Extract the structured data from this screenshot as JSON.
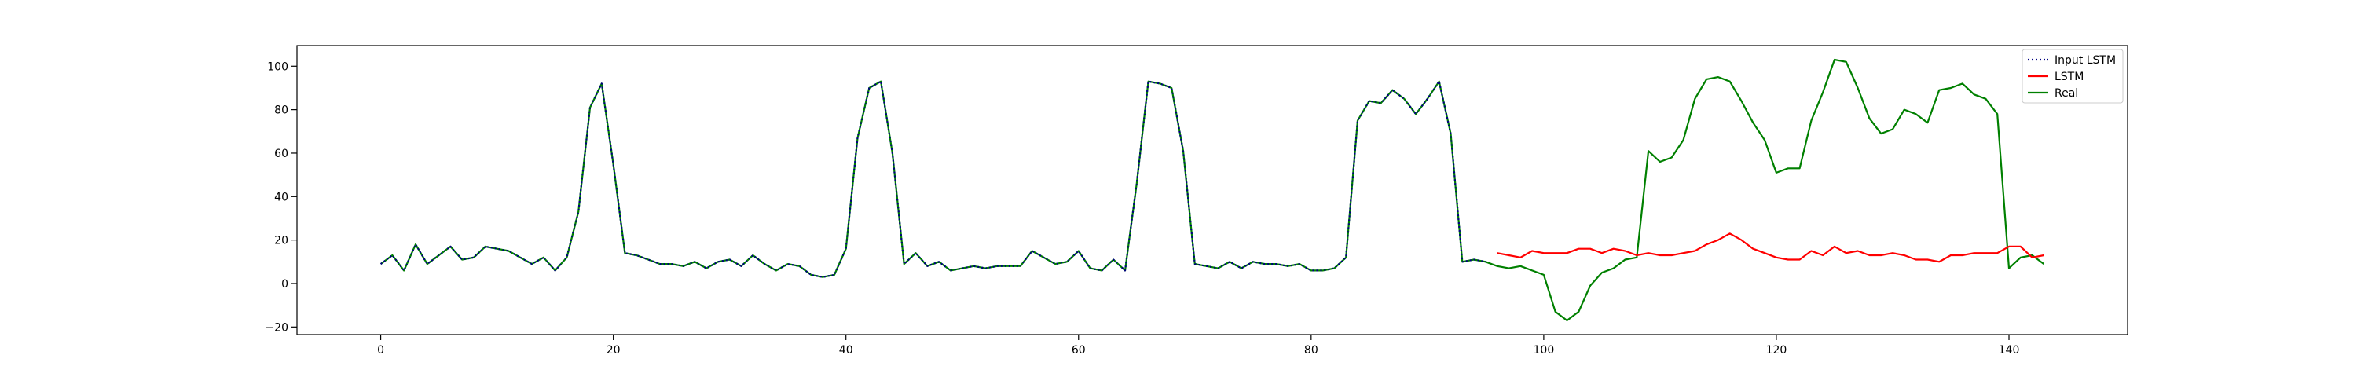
{
  "chart_data": {
    "type": "line",
    "title": "",
    "xlabel": "",
    "ylabel": "",
    "xlim": [
      -7.2,
      150.2
    ],
    "ylim": [
      -23.5,
      109.5
    ],
    "xticks": [
      0,
      20,
      40,
      60,
      80,
      100,
      120,
      140
    ],
    "yticks": [
      -20,
      0,
      20,
      40,
      60,
      80,
      100
    ],
    "grid": false,
    "legend_position": "top-right",
    "series": [
      {
        "name": "Input LSTM",
        "color": "#000080",
        "style": "dotted",
        "x": [
          0,
          1,
          2,
          3,
          4,
          5,
          6,
          7,
          8,
          9,
          10,
          11,
          12,
          13,
          14,
          15,
          16,
          17,
          18,
          19,
          20,
          21,
          22,
          23,
          24,
          25,
          26,
          27,
          28,
          29,
          30,
          31,
          32,
          33,
          34,
          35,
          36,
          37,
          38,
          39,
          40,
          41,
          42,
          43,
          44,
          45,
          46,
          47,
          48,
          49,
          50,
          51,
          52,
          53,
          54,
          55,
          56,
          57,
          58,
          59,
          60,
          61,
          62,
          63,
          64,
          65,
          66,
          67,
          68,
          69,
          70,
          71,
          72,
          73,
          74,
          75,
          76,
          77,
          78,
          79,
          80,
          81,
          82,
          83,
          84,
          85,
          86,
          87,
          88,
          89,
          90,
          91,
          92,
          93,
          94,
          95
        ],
        "values": [
          9,
          13,
          6,
          18,
          9,
          13,
          17,
          11,
          12,
          17,
          16,
          15,
          12,
          9,
          12,
          6,
          12,
          33,
          81,
          92,
          55,
          14,
          13,
          11,
          9,
          9,
          8,
          10,
          7,
          10,
          11,
          8,
          13,
          9,
          6,
          9,
          8,
          4,
          3,
          4,
          16,
          67,
          90,
          93,
          60,
          9,
          14,
          8,
          10,
          6,
          7,
          8,
          7,
          8,
          8,
          8,
          15,
          12,
          9,
          10,
          15,
          7,
          6,
          11,
          6,
          46,
          93,
          92,
          90,
          61,
          9,
          8,
          7,
          10,
          7,
          10,
          9,
          9,
          8,
          9,
          6,
          6,
          7,
          12,
          75,
          84,
          83,
          89,
          85,
          78,
          85,
          93,
          69,
          10,
          11,
          10
        ]
      },
      {
        "name": "LSTM",
        "color": "#ff0000",
        "style": "solid",
        "x": [
          96,
          97,
          98,
          99,
          100,
          101,
          102,
          103,
          104,
          105,
          106,
          107,
          108,
          109,
          110,
          111,
          112,
          113,
          114,
          115,
          116,
          117,
          118,
          119,
          120,
          121,
          122,
          123,
          124,
          125,
          126,
          127,
          128,
          129,
          130,
          131,
          132,
          133,
          134,
          135,
          136,
          137,
          138,
          139,
          140,
          141,
          142,
          143
        ],
        "values": [
          14,
          13,
          12,
          15,
          14,
          14,
          14,
          16,
          16,
          14,
          16,
          15,
          13,
          14,
          13,
          13,
          14,
          15,
          18,
          20,
          23,
          20,
          16,
          14,
          12,
          11,
          11,
          15,
          13,
          17,
          14,
          15,
          13,
          13,
          14,
          13,
          11,
          11,
          10,
          13,
          13,
          14,
          14,
          14,
          17,
          17,
          12,
          13
        ]
      },
      {
        "name": "Real",
        "color": "#008000",
        "style": "solid",
        "x": [
          0,
          1,
          2,
          3,
          4,
          5,
          6,
          7,
          8,
          9,
          10,
          11,
          12,
          13,
          14,
          15,
          16,
          17,
          18,
          19,
          20,
          21,
          22,
          23,
          24,
          25,
          26,
          27,
          28,
          29,
          30,
          31,
          32,
          33,
          34,
          35,
          36,
          37,
          38,
          39,
          40,
          41,
          42,
          43,
          44,
          45,
          46,
          47,
          48,
          49,
          50,
          51,
          52,
          53,
          54,
          55,
          56,
          57,
          58,
          59,
          60,
          61,
          62,
          63,
          64,
          65,
          66,
          67,
          68,
          69,
          70,
          71,
          72,
          73,
          74,
          75,
          76,
          77,
          78,
          79,
          80,
          81,
          82,
          83,
          84,
          85,
          86,
          87,
          88,
          89,
          90,
          91,
          92,
          93,
          94,
          95,
          96,
          97,
          98,
          99,
          100,
          101,
          102,
          103,
          104,
          105,
          106,
          107,
          108,
          109,
          110,
          111,
          112,
          113,
          114,
          115,
          116,
          117,
          118,
          119,
          120,
          121,
          122,
          123,
          124,
          125,
          126,
          127,
          128,
          129,
          130,
          131,
          132,
          133,
          134,
          135,
          136,
          137,
          138,
          139,
          140,
          141,
          142,
          143
        ],
        "values": [
          9,
          13,
          6,
          18,
          9,
          13,
          17,
          11,
          12,
          17,
          16,
          15,
          12,
          9,
          12,
          6,
          12,
          33,
          81,
          92,
          55,
          14,
          13,
          11,
          9,
          9,
          8,
          10,
          7,
          10,
          11,
          8,
          13,
          9,
          6,
          9,
          8,
          4,
          3,
          4,
          16,
          67,
          90,
          93,
          60,
          9,
          14,
          8,
          10,
          6,
          7,
          8,
          7,
          8,
          8,
          8,
          15,
          12,
          9,
          10,
          15,
          7,
          6,
          11,
          6,
          46,
          93,
          92,
          90,
          61,
          9,
          8,
          7,
          10,
          7,
          10,
          9,
          9,
          8,
          9,
          6,
          6,
          7,
          12,
          75,
          84,
          83,
          89,
          85,
          78,
          85,
          93,
          69,
          10,
          11,
          10,
          8,
          7,
          8,
          6,
          4,
          -13,
          -17,
          -13,
          -1,
          5,
          7,
          11,
          12,
          61,
          56,
          58,
          66,
          85,
          94,
          95,
          93,
          84,
          74,
          66,
          51,
          53,
          53,
          75,
          88,
          103,
          102,
          90,
          76,
          69,
          71,
          80,
          78,
          74,
          89,
          90,
          92,
          87,
          85,
          78,
          7,
          12,
          13,
          9
        ]
      }
    ]
  }
}
